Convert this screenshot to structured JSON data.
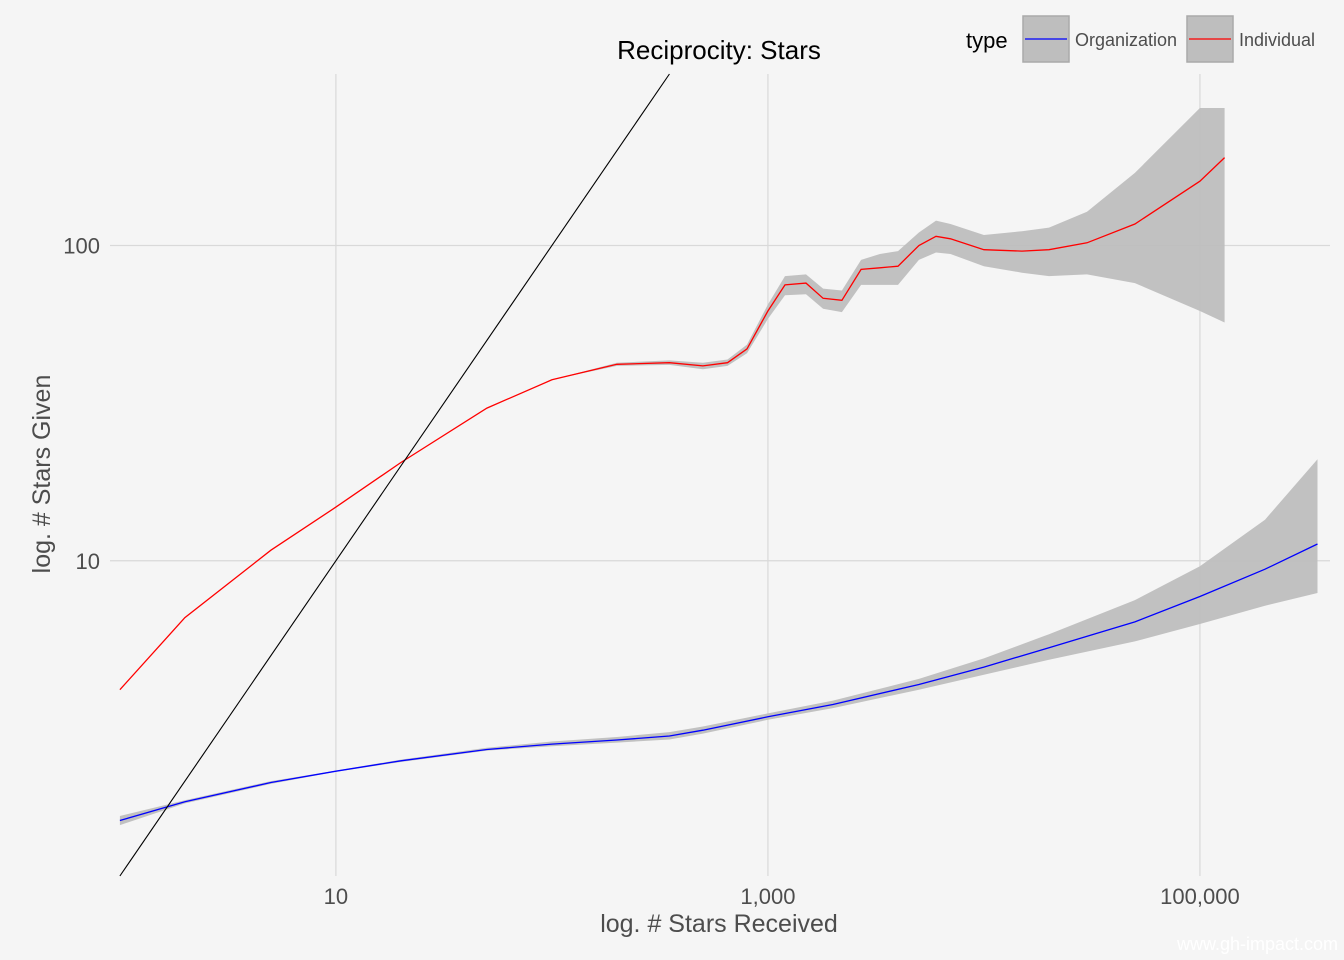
{
  "chart_data": {
    "type": "line",
    "title": "Reciprocity: Stars",
    "xlabel": "log. # Stars Received",
    "ylabel": "log. # Stars Given",
    "x_scale": "log10",
    "y_scale": "log10",
    "xlim": [
      0.9,
      400000
    ],
    "ylim": [
      1.0,
      350
    ],
    "x_ticks": [
      10,
      1000,
      100000
    ],
    "x_tick_labels": [
      "10",
      "1,000",
      "100,000"
    ],
    "y_ticks": [
      10,
      100
    ],
    "y_tick_labels": [
      "10",
      "100"
    ],
    "grid": true,
    "legend": {
      "title": "type",
      "position": "top-right"
    },
    "reference_line": {
      "slope": 1,
      "intercept": 0,
      "color": "#000000"
    },
    "series": [
      {
        "name": "Organization",
        "color": "#0000ff",
        "x": [
          1,
          2,
          5,
          10,
          20,
          50,
          100,
          200,
          350,
          500,
          1000,
          2000,
          5000,
          10000,
          20000,
          50000,
          100000,
          200000,
          350000
        ],
        "y": [
          1.5,
          1.72,
          1.98,
          2.15,
          2.32,
          2.52,
          2.62,
          2.7,
          2.78,
          2.9,
          3.2,
          3.5,
          4.05,
          4.6,
          5.3,
          6.4,
          7.7,
          9.4,
          11.3
        ],
        "lower": [
          1.45,
          1.7,
          1.96,
          2.14,
          2.3,
          2.5,
          2.58,
          2.65,
          2.71,
          2.83,
          3.13,
          3.41,
          3.9,
          4.35,
          4.85,
          5.55,
          6.3,
          7.2,
          7.9
        ],
        "upper": [
          1.55,
          1.74,
          2.0,
          2.16,
          2.34,
          2.55,
          2.67,
          2.76,
          2.86,
          2.98,
          3.28,
          3.6,
          4.22,
          4.9,
          5.85,
          7.5,
          9.6,
          13.5,
          21.0
        ]
      },
      {
        "name": "Individual",
        "color": "#ff0000",
        "x": [
          1,
          2,
          5,
          10,
          20,
          50,
          100,
          200,
          350,
          500,
          650,
          800,
          1000,
          1200,
          1500,
          1800,
          2200,
          2700,
          3300,
          4000,
          5000,
          6000,
          7000,
          10000,
          15000,
          20000,
          30000,
          50000,
          100000,
          130000
        ],
        "y": [
          3.9,
          6.6,
          10.8,
          14.8,
          20.5,
          30.5,
          37.5,
          42.0,
          42.5,
          41.5,
          42.5,
          47.0,
          62.0,
          75.0,
          76.0,
          68.0,
          67.0,
          84.0,
          85.0,
          86.0,
          100.0,
          107.0,
          105.0,
          97.0,
          96.0,
          97.0,
          102.0,
          117.0,
          160.0,
          190.0
        ],
        "lower": [
          3.9,
          6.6,
          10.8,
          14.8,
          20.5,
          30.5,
          37.5,
          41.5,
          41.8,
          40.5,
          41.5,
          45.5,
          58.5,
          69.5,
          70.0,
          63.0,
          61.5,
          75.0,
          75.0,
          75.0,
          90.0,
          95.0,
          94.0,
          86.0,
          82.0,
          80.0,
          81.0,
          76.0,
          62.0,
          57.0
        ],
        "upper": [
          3.9,
          6.6,
          10.8,
          14.8,
          20.5,
          30.5,
          37.5,
          42.5,
          43.2,
          42.5,
          43.5,
          48.5,
          65.0,
          80.0,
          81.0,
          73.0,
          72.0,
          90.0,
          94.0,
          96.0,
          110.0,
          120.0,
          117.0,
          108.0,
          111.0,
          114.0,
          128.0,
          170.0,
          350.0,
          600.0
        ]
      }
    ]
  },
  "watermark": "www.gh-impact.com",
  "colors": {
    "background": "#f5f5f5",
    "grid": "#d9d9d9",
    "ribbon": "#bebebe"
  }
}
